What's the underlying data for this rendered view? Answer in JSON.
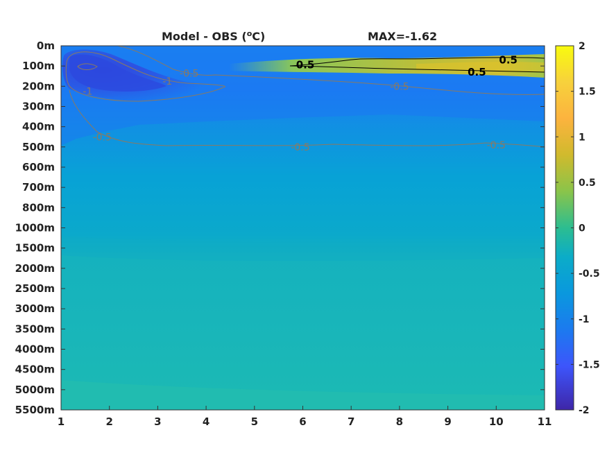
{
  "chart_data": {
    "type": "heatmap",
    "title_left": "Model - OBS (",
    "title_degree": "o",
    "title_unit_end": "C)",
    "title_right": "MAX=-1.62",
    "y_ticks": [
      "0m",
      "100m",
      "200m",
      "300m",
      "400m",
      "500m",
      "600m",
      "700m",
      "800m",
      "1000m",
      "1500m",
      "2000m",
      "2500m",
      "3000m",
      "3500m",
      "4000m",
      "4500m",
      "5000m",
      "5500m"
    ],
    "x_ticks": [
      "1",
      "2",
      "3",
      "4",
      "5",
      "6",
      "7",
      "8",
      "9",
      "10",
      "11"
    ],
    "xlim": [
      1,
      11
    ],
    "colorbar": {
      "ticks": [
        "2",
        "1.5",
        "1",
        "0.5",
        "0",
        "-0.5",
        "-1",
        "-1.5",
        "-2"
      ],
      "range": [
        -2,
        2
      ],
      "colormap": "parula"
    },
    "contour_labels": [
      {
        "text": "0.5",
        "style": "black",
        "x": 6.05,
        "level": 0.95
      },
      {
        "text": "0.5",
        "style": "black",
        "x": 10.25,
        "level": 0.7
      },
      {
        "text": "0.5",
        "style": "black",
        "x": 9.6,
        "level": 1.3
      },
      {
        "text": "-0.5",
        "style": "gray",
        "x": 3.65,
        "level": 1.35
      },
      {
        "text": "-1",
        "style": "gray",
        "x": 3.2,
        "level": 1.75
      },
      {
        "text": "-1",
        "style": "gray",
        "x": 1.55,
        "level": 2.25
      },
      {
        "text": "-0.5",
        "style": "gray",
        "x": 8.0,
        "level": 2.0
      },
      {
        "text": "-0.5",
        "style": "gray",
        "x": 1.85,
        "level": 4.5
      },
      {
        "text": "-0.5",
        "style": "gray",
        "x": 5.95,
        "level": 5.0
      },
      {
        "text": "-0.5",
        "style": "gray",
        "x": 10.0,
        "level": 4.9
      }
    ],
    "colors": {
      "deep": "#1cb8b8",
      "mid": "#09a6d1",
      "upper": "#197cf0",
      "minimum": "#2a3fd8",
      "warm": "#d9c228"
    }
  }
}
